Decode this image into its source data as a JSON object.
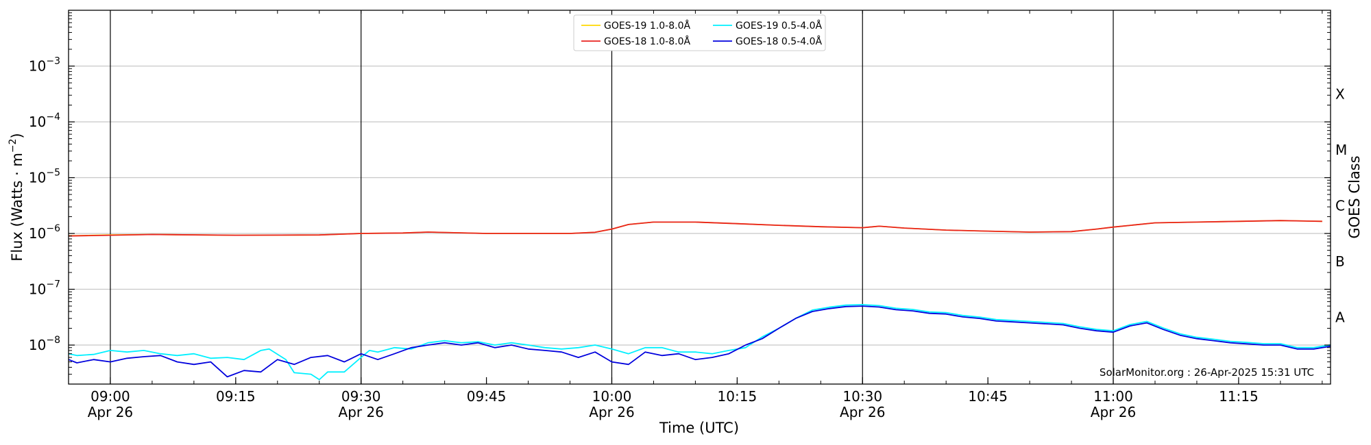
{
  "chart_data": {
    "type": "line",
    "xlabel": "Time (UTC)",
    "ylabel_base": "Flux (Watts · m",
    "ylabel_exp": "−2",
    "ylabel_close": ")",
    "ylabel_right": "GOES Class",
    "y_scale": "log",
    "ylim": [
      2e-09,
      0.01
    ],
    "xlim": [
      "08:55",
      "11:26"
    ],
    "x_ticks": [
      {
        "time": "09:00",
        "label": "09:00",
        "sublabel": "Apr 26"
      },
      {
        "time": "09:15",
        "label": "09:15",
        "sublabel": ""
      },
      {
        "time": "09:30",
        "label": "09:30",
        "sublabel": "Apr 26"
      },
      {
        "time": "09:45",
        "label": "09:45",
        "sublabel": ""
      },
      {
        "time": "10:00",
        "label": "10:00",
        "sublabel": "Apr 26"
      },
      {
        "time": "10:15",
        "label": "10:15",
        "sublabel": ""
      },
      {
        "time": "10:30",
        "label": "10:30",
        "sublabel": "Apr 26"
      },
      {
        "time": "10:45",
        "label": "10:45",
        "sublabel": ""
      },
      {
        "time": "11:00",
        "label": "11:00",
        "sublabel": "Apr 26"
      },
      {
        "time": "11:15",
        "label": "11:15",
        "sublabel": ""
      }
    ],
    "hour_lines": [
      "09:00",
      "09:30",
      "10:00",
      "10:30",
      "11:00"
    ],
    "y_ticks": [
      {
        "exp": -8,
        "label": "10",
        "sup": "−8"
      },
      {
        "exp": -7,
        "label": "10",
        "sup": "−7"
      },
      {
        "exp": -6,
        "label": "10",
        "sup": "−6"
      },
      {
        "exp": -5,
        "label": "10",
        "sup": "−5"
      },
      {
        "exp": -4,
        "label": "10",
        "sup": "−4"
      },
      {
        "exp": -3,
        "label": "10",
        "sup": "−3"
      }
    ],
    "goes_classes": [
      {
        "label": "A",
        "value": 1e-08
      },
      {
        "label": "B",
        "value": 1e-07
      },
      {
        "label": "C",
        "value": 1e-06
      },
      {
        "label": "M",
        "value": 1e-05
      },
      {
        "label": "X",
        "value": 0.0001
      }
    ],
    "grid": true,
    "legend_position": "top-center",
    "credit": "SolarMonitor.org : 26-Apr-2025 15:31 UTC",
    "series": [
      {
        "name": "GOES-19 1.0-8.0Å",
        "color": "#ffd700",
        "points": [
          [
            "08:55",
            9.1e-07
          ],
          [
            "09:00",
            9.4e-07
          ],
          [
            "09:05",
            9.6e-07
          ],
          [
            "09:15",
            9.3e-07
          ],
          [
            "09:25",
            9.4e-07
          ],
          [
            "09:30",
            1e-06
          ],
          [
            "09:35",
            1.02e-06
          ],
          [
            "09:38",
            1.06e-06
          ],
          [
            "09:45",
            1e-06
          ],
          [
            "09:55",
            1e-06
          ],
          [
            "09:58",
            1.05e-06
          ],
          [
            "10:00",
            1.2e-06
          ],
          [
            "10:02",
            1.45e-06
          ],
          [
            "10:05",
            1.6e-06
          ],
          [
            "10:10",
            1.6e-06
          ],
          [
            "10:15",
            1.5e-06
          ],
          [
            "10:20",
            1.4e-06
          ],
          [
            "10:25",
            1.32e-06
          ],
          [
            "10:30",
            1.27e-06
          ],
          [
            "10:32",
            1.35e-06
          ],
          [
            "10:35",
            1.25e-06
          ],
          [
            "10:40",
            1.15e-06
          ],
          [
            "10:45",
            1.1e-06
          ],
          [
            "10:50",
            1.06e-06
          ],
          [
            "10:55",
            1.08e-06
          ],
          [
            "10:58",
            1.2e-06
          ],
          [
            "11:00",
            1.3e-06
          ],
          [
            "11:05",
            1.55e-06
          ],
          [
            "11:10",
            1.6e-06
          ],
          [
            "11:15",
            1.65e-06
          ],
          [
            "11:20",
            1.7e-06
          ],
          [
            "11:25",
            1.65e-06
          ]
        ]
      },
      {
        "name": "GOES-18 1.0-8.0Å",
        "color": "#e8231f",
        "points": [
          [
            "08:55",
            9e-07
          ],
          [
            "09:00",
            9.3e-07
          ],
          [
            "09:05",
            9.6e-07
          ],
          [
            "09:15",
            9.3e-07
          ],
          [
            "09:25",
            9.4e-07
          ],
          [
            "09:30",
            1e-06
          ],
          [
            "09:35",
            1.02e-06
          ],
          [
            "09:38",
            1.06e-06
          ],
          [
            "09:45",
            1e-06
          ],
          [
            "09:55",
            1e-06
          ],
          [
            "09:58",
            1.05e-06
          ],
          [
            "10:00",
            1.2e-06
          ],
          [
            "10:02",
            1.45e-06
          ],
          [
            "10:05",
            1.6e-06
          ],
          [
            "10:10",
            1.6e-06
          ],
          [
            "10:15",
            1.5e-06
          ],
          [
            "10:20",
            1.4e-06
          ],
          [
            "10:25",
            1.32e-06
          ],
          [
            "10:30",
            1.27e-06
          ],
          [
            "10:32",
            1.35e-06
          ],
          [
            "10:35",
            1.25e-06
          ],
          [
            "10:40",
            1.15e-06
          ],
          [
            "10:45",
            1.1e-06
          ],
          [
            "10:50",
            1.06e-06
          ],
          [
            "10:55",
            1.08e-06
          ],
          [
            "10:58",
            1.2e-06
          ],
          [
            "11:00",
            1.3e-06
          ],
          [
            "11:05",
            1.55e-06
          ],
          [
            "11:10",
            1.6e-06
          ],
          [
            "11:15",
            1.65e-06
          ],
          [
            "11:20",
            1.7e-06
          ],
          [
            "11:25",
            1.65e-06
          ]
        ]
      },
      {
        "name": "GOES-19 0.5-4.0Å",
        "color": "#00f0ff",
        "points": [
          [
            "08:55",
            7e-09
          ],
          [
            "08:56",
            6.5e-09
          ],
          [
            "08:58",
            6.8e-09
          ],
          [
            "09:00",
            8e-09
          ],
          [
            "09:02",
            7.5e-09
          ],
          [
            "09:04",
            8e-09
          ],
          [
            "09:06",
            7e-09
          ],
          [
            "09:08",
            6.5e-09
          ],
          [
            "09:10",
            7e-09
          ],
          [
            "09:12",
            5.8e-09
          ],
          [
            "09:14",
            6e-09
          ],
          [
            "09:16",
            5.5e-09
          ],
          [
            "09:18",
            8e-09
          ],
          [
            "09:19",
            8.5e-09
          ],
          [
            "09:21",
            5.5e-09
          ],
          [
            "09:22",
            3.2e-09
          ],
          [
            "09:24",
            3e-09
          ],
          [
            "09:25",
            2.4e-09
          ],
          [
            "09:26",
            3.3e-09
          ],
          [
            "09:28",
            3.3e-09
          ],
          [
            "09:30",
            6e-09
          ],
          [
            "09:31",
            8e-09
          ],
          [
            "09:32",
            7.5e-09
          ],
          [
            "09:34",
            9e-09
          ],
          [
            "09:36",
            8.5e-09
          ],
          [
            "09:38",
            1.1e-08
          ],
          [
            "09:40",
            1.2e-08
          ],
          [
            "09:42",
            1.1e-08
          ],
          [
            "09:44",
            1.15e-08
          ],
          [
            "09:46",
            1e-08
          ],
          [
            "09:48",
            1.1e-08
          ],
          [
            "09:50",
            1e-08
          ],
          [
            "09:52",
            9e-09
          ],
          [
            "09:54",
            8.5e-09
          ],
          [
            "09:56",
            9e-09
          ],
          [
            "09:58",
            1e-08
          ],
          [
            "10:00",
            8.5e-09
          ],
          [
            "10:02",
            7e-09
          ],
          [
            "10:04",
            9e-09
          ],
          [
            "10:06",
            9e-09
          ],
          [
            "10:08",
            7.5e-09
          ],
          [
            "10:10",
            7.5e-09
          ],
          [
            "10:12",
            7e-09
          ],
          [
            "10:14",
            8e-09
          ],
          [
            "10:16",
            9e-09
          ],
          [
            "10:18",
            1.4e-08
          ],
          [
            "10:20",
            2e-08
          ],
          [
            "10:22",
            3e-08
          ]
        ]
      },
      {
        "name": "GOES-18 0.5-4.0Å",
        "color": "#0000dd",
        "points": [
          [
            "08:55",
            5.5e-09
          ],
          [
            "08:56",
            4.8e-09
          ],
          [
            "08:58",
            5.5e-09
          ],
          [
            "09:00",
            5e-09
          ],
          [
            "09:02",
            5.8e-09
          ],
          [
            "09:04",
            6.2e-09
          ],
          [
            "09:06",
            6.5e-09
          ],
          [
            "09:08",
            5e-09
          ],
          [
            "09:10",
            4.5e-09
          ],
          [
            "09:12",
            5e-09
          ],
          [
            "09:14",
            2.7e-09
          ],
          [
            "09:16",
            3.5e-09
          ],
          [
            "09:18",
            3.3e-09
          ],
          [
            "09:20",
            5.5e-09
          ],
          [
            "09:22",
            4.5e-09
          ],
          [
            "09:24",
            6e-09
          ],
          [
            "09:26",
            6.5e-09
          ],
          [
            "09:28",
            5e-09
          ],
          [
            "09:30",
            7e-09
          ],
          [
            "09:32",
            5.5e-09
          ],
          [
            "09:34",
            7e-09
          ],
          [
            "09:36",
            9e-09
          ],
          [
            "09:38",
            1e-08
          ],
          [
            "09:40",
            1.1e-08
          ],
          [
            "09:42",
            1e-08
          ],
          [
            "09:44",
            1.1e-08
          ],
          [
            "09:46",
            9e-09
          ],
          [
            "09:48",
            1e-08
          ],
          [
            "09:50",
            8.5e-09
          ],
          [
            "09:52",
            8e-09
          ],
          [
            "09:54",
            7.5e-09
          ],
          [
            "09:56",
            6e-09
          ],
          [
            "09:58",
            7.5e-09
          ],
          [
            "10:00",
            5e-09
          ],
          [
            "10:02",
            4.5e-09
          ],
          [
            "10:04",
            7.5e-09
          ],
          [
            "10:06",
            6.5e-09
          ],
          [
            "10:08",
            7e-09
          ],
          [
            "10:10",
            5.5e-09
          ],
          [
            "10:12",
            6e-09
          ],
          [
            "10:14",
            7e-09
          ],
          [
            "10:16",
            1e-08
          ],
          [
            "10:18",
            1.3e-08
          ],
          [
            "10:20",
            2e-08
          ],
          [
            "10:22",
            3e-08
          ]
        ]
      }
    ],
    "shared_tail": {
      "note_series": [
        "GOES-19 0.5-4.0Å",
        "GOES-18 0.5-4.0Å"
      ],
      "points": [
        [
          "10:24",
          4e-08
        ],
        [
          "10:26",
          4.5e-08
        ],
        [
          "10:28",
          4.9e-08
        ],
        [
          "10:30",
          5e-08
        ],
        [
          "10:32",
          4.8e-08
        ],
        [
          "10:34",
          4.3e-08
        ],
        [
          "10:36",
          4.1e-08
        ],
        [
          "10:38",
          3.7e-08
        ],
        [
          "10:40",
          3.6e-08
        ],
        [
          "10:42",
          3.2e-08
        ],
        [
          "10:44",
          3e-08
        ],
        [
          "10:46",
          2.7e-08
        ],
        [
          "10:48",
          2.6e-08
        ],
        [
          "10:50",
          2.5e-08
        ],
        [
          "10:52",
          2.4e-08
        ],
        [
          "10:54",
          2.3e-08
        ],
        [
          "10:56",
          2e-08
        ],
        [
          "10:58",
          1.8e-08
        ],
        [
          "11:00",
          1.7e-08
        ],
        [
          "11:02",
          2.2e-08
        ],
        [
          "11:04",
          2.5e-08
        ],
        [
          "11:06",
          1.9e-08
        ],
        [
          "11:08",
          1.5e-08
        ],
        [
          "11:10",
          1.3e-08
        ],
        [
          "11:12",
          1.2e-08
        ],
        [
          "11:14",
          1.1e-08
        ],
        [
          "11:16",
          1.05e-08
        ],
        [
          "11:18",
          1e-08
        ],
        [
          "11:20",
          1e-08
        ],
        [
          "11:22",
          8.5e-09
        ],
        [
          "11:24",
          8.5e-09
        ],
        [
          "11:26",
          9.5e-09
        ]
      ]
    }
  }
}
